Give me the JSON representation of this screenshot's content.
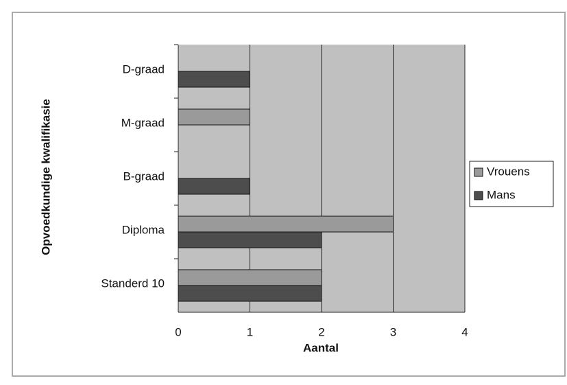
{
  "chart_data": {
    "type": "bar",
    "orientation": "horizontal",
    "xlabel": "Aantal",
    "ylabel": "Opvoedkundige kwalifikasie",
    "categories": [
      "D-graad",
      "M-graad",
      "B-graad",
      "Diploma",
      "Standerd 10"
    ],
    "series": [
      {
        "name": "Vrouens",
        "color": "#9a9a9a",
        "values": [
          0,
          1,
          0,
          3,
          2
        ]
      },
      {
        "name": "Mans",
        "color": "#4d4d4d",
        "values": [
          1,
          0,
          1,
          2,
          2
        ]
      }
    ],
    "xlim": [
      0,
      4
    ],
    "xticks": [
      0,
      1,
      2,
      3,
      4
    ],
    "grid": true,
    "legend": "right"
  }
}
